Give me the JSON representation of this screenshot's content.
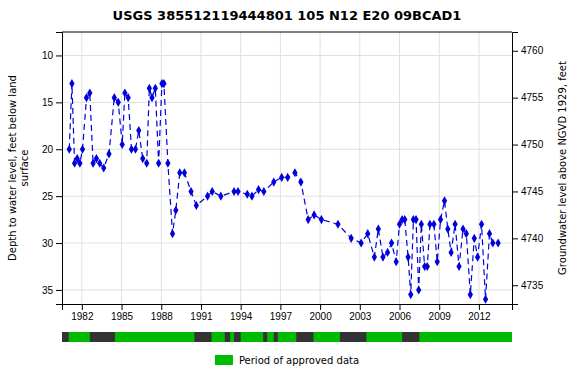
{
  "chart_data": {
    "type": "line",
    "title": "USGS 385512119444801 105  N12 E20 09BCAD1",
    "y_label": "Depth to water level, feet below land\nsurface",
    "y2_label": "Groundwater level above NGVD 1929, feet",
    "xlim": [
      1980.5,
      2014.5
    ],
    "xticks": [
      1982,
      1985,
      1988,
      1991,
      1994,
      1997,
      2000,
      2003,
      2006,
      2009,
      2012
    ],
    "ylim": [
      36.5,
      7.5
    ],
    "yticks": [
      10,
      15,
      20,
      25,
      30,
      35
    ],
    "y2lim": [
      4733,
      4762
    ],
    "y2ticks": [
      4735,
      4740,
      4745,
      4750,
      4755,
      4760
    ],
    "grid": true,
    "x": [
      1981.05,
      1981.25,
      1981.45,
      1981.65,
      1981.85,
      1982.05,
      1982.35,
      1982.6,
      1982.85,
      1983.1,
      1983.35,
      1983.65,
      1984.05,
      1984.45,
      1984.75,
      1985.05,
      1985.25,
      1985.5,
      1985.75,
      1986.05,
      1986.3,
      1986.6,
      1986.9,
      1987.1,
      1987.3,
      1987.55,
      1987.8,
      1988.05,
      1988.2,
      1988.5,
      1988.85,
      1989.1,
      1989.4,
      1989.75,
      1990.25,
      1990.65,
      1991.5,
      1991.85,
      1992.5,
      1993.5,
      1993.8,
      1994.5,
      1994.85,
      1995.35,
      1995.75,
      1996.5,
      1997.1,
      1997.55,
      1998.1,
      1998.55,
      1999.1,
      1999.55,
      2000.1,
      2001.35,
      2002.35,
      2003.1,
      2003.6,
      2004.1,
      2004.4,
      2004.75,
      2005.1,
      2005.4,
      2005.75,
      2006.0,
      2006.2,
      2006.4,
      2006.65,
      2006.85,
      2007.05,
      2007.25,
      2007.45,
      2007.65,
      2007.9,
      2008.1,
      2008.3,
      2008.6,
      2008.85,
      2009.1,
      2009.4,
      2009.65,
      2009.9,
      2010.2,
      2010.5,
      2010.8,
      2011.05,
      2011.35,
      2011.65,
      2011.9,
      2012.2,
      2012.5,
      2012.8,
      2013.05,
      2013.45
    ],
    "series": [
      {
        "color": "#0000dd",
        "marker": "diamond",
        "line_style": "dashed",
        "values": [
          20.0,
          13.0,
          21.5,
          21.0,
          21.5,
          20.0,
          14.5,
          14.0,
          21.5,
          21.0,
          21.5,
          22.0,
          20.5,
          14.5,
          15.0,
          19.5,
          14.0,
          14.5,
          20.0,
          20.0,
          18.0,
          21.0,
          21.5,
          13.5,
          14.5,
          13.5,
          21.5,
          13.0,
          13.0,
          21.5,
          29.0,
          26.5,
          22.5,
          22.5,
          24.5,
          26.0,
          25.0,
          24.5,
          25.0,
          24.5,
          24.5,
          24.8,
          25.0,
          24.3,
          24.5,
          23.5,
          23.0,
          23.0,
          22.5,
          23.5,
          27.5,
          27.0,
          27.5,
          28.0,
          29.5,
          30.0,
          29.0,
          31.5,
          28.5,
          31.5,
          31.0,
          30.0,
          32.0,
          28.0,
          27.5,
          27.5,
          31.5,
          35.5,
          27.5,
          27.5,
          35.0,
          28.0,
          32.5,
          32.5,
          28.0,
          28.0,
          32.0,
          27.5,
          25.5,
          28.5,
          31.0,
          28.0,
          32.5,
          28.5,
          29.0,
          35.5,
          29.5,
          31.5,
          28.0,
          36.0,
          29.0,
          30.0,
          30.0
        ]
      }
    ],
    "approved_periods": {
      "name": "Period of approved data",
      "color": "#00bb00",
      "ranges": [
        [
          1981.0,
          1982.6
        ],
        [
          1984.5,
          1990.5
        ],
        [
          1991.8,
          1992.8
        ],
        [
          1993.2,
          1993.5
        ],
        [
          1994.0,
          1995.7
        ],
        [
          1996.0,
          1996.5
        ],
        [
          1996.8,
          1998.2
        ],
        [
          1999.5,
          2001.5
        ],
        [
          2003.5,
          2006.2
        ],
        [
          2007.5,
          2014.5
        ]
      ]
    }
  }
}
